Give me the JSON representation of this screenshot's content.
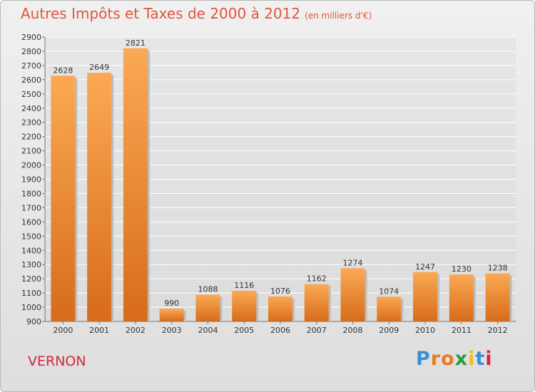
{
  "title": "Autres Impôts et Taxes de 2000 à 2012",
  "title_unit": "(en milliers d'€)",
  "commune": "VERNON",
  "logo_text": "Proxiti",
  "colors": {
    "title": "#e2553a",
    "commune": "#d5263e",
    "bar_light": "#fba954",
    "bar_dark": "#d76c1a"
  },
  "chart_data": {
    "type": "bar",
    "title": "Autres Impôts et Taxes de 2000 à 2012",
    "xlabel": "",
    "ylabel": "",
    "categories": [
      "2000",
      "2001",
      "2002",
      "2003",
      "2004",
      "2005",
      "2006",
      "2007",
      "2008",
      "2009",
      "2010",
      "2011",
      "2012"
    ],
    "values": [
      2628,
      2649,
      2821,
      990,
      1088,
      1116,
      1076,
      1162,
      1274,
      1074,
      1247,
      1230,
      1238
    ],
    "ylim": [
      900,
      2900
    ],
    "yticks": [
      900,
      1000,
      1100,
      1200,
      1300,
      1400,
      1500,
      1600,
      1700,
      1800,
      1900,
      2000,
      2100,
      2200,
      2300,
      2400,
      2500,
      2600,
      2700,
      2800,
      2900
    ],
    "grid": true,
    "data_labels": true
  }
}
